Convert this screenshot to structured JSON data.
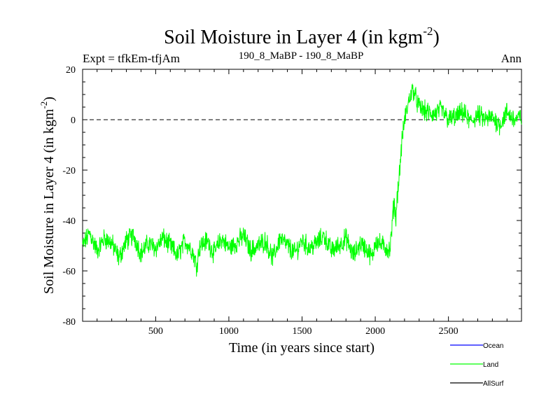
{
  "header": {
    "title_main": "Soil Moisture in Layer 4 (in kgm",
    "title_sup": "-2",
    "title_close": ")",
    "expt": "Expt = tfkEm-tfjAm",
    "subtitle": "190_8_MaBP - 190_8_MaBP",
    "period": "Ann"
  },
  "axes": {
    "xlabel": "Time (in years since start)",
    "ylabel_main": "Soil Moisture in Layer 4 (in kgm",
    "ylabel_sup": "-2",
    "ylabel_close": ")"
  },
  "legend": {
    "items": [
      {
        "label": "Ocean",
        "color": "#0000ff"
      },
      {
        "label": "Land",
        "color": "#00ff00"
      },
      {
        "label": "AllSurf",
        "color": "#000000"
      }
    ]
  },
  "chart_data": {
    "type": "line",
    "xlim": [
      1,
      2999
    ],
    "ylim": [
      -80,
      20
    ],
    "xticks": [
      500,
      1000,
      1500,
      2000,
      2500
    ],
    "yticks": [
      20,
      0,
      -20,
      -40,
      -60,
      -80
    ],
    "reference_line": {
      "y": 0,
      "style": "dashed"
    },
    "series": [
      {
        "name": "Land",
        "color": "#00ff00",
        "x": [
          1,
          50,
          100,
          150,
          200,
          250,
          300,
          350,
          400,
          450,
          500,
          550,
          600,
          650,
          700,
          750,
          780,
          800,
          850,
          900,
          950,
          1000,
          1050,
          1100,
          1150,
          1200,
          1250,
          1300,
          1350,
          1400,
          1450,
          1500,
          1550,
          1600,
          1650,
          1700,
          1750,
          1800,
          1850,
          1900,
          1950,
          1980,
          2000,
          2050,
          2080,
          2100,
          2110,
          2120,
          2130,
          2140,
          2150,
          2160,
          2170,
          2180,
          2190,
          2200,
          2220,
          2240,
          2260,
          2280,
          2300,
          2350,
          2400,
          2450,
          2500,
          2550,
          2600,
          2650,
          2700,
          2750,
          2800,
          2850,
          2900,
          2950,
          2999
        ],
        "y": [
          -50,
          -45,
          -52,
          -47,
          -49,
          -55,
          -48,
          -46,
          -53,
          -49,
          -51,
          -47,
          -50,
          -54,
          -48,
          -52,
          -58,
          -50,
          -48,
          -53,
          -47,
          -51,
          -49,
          -46,
          -52,
          -50,
          -48,
          -55,
          -47,
          -50,
          -53,
          -48,
          -51,
          -49,
          -46,
          -52,
          -50,
          -47,
          -54,
          -49,
          -52,
          -55,
          -48,
          -50,
          -51,
          -52,
          -46,
          -38,
          -32,
          -40,
          -30,
          -25,
          -18,
          -10,
          -5,
          0,
          5,
          10,
          12,
          8,
          5,
          3,
          2,
          4,
          0,
          1,
          3,
          -1,
          2,
          0,
          1,
          -2,
          3,
          0,
          1
        ]
      }
    ]
  }
}
